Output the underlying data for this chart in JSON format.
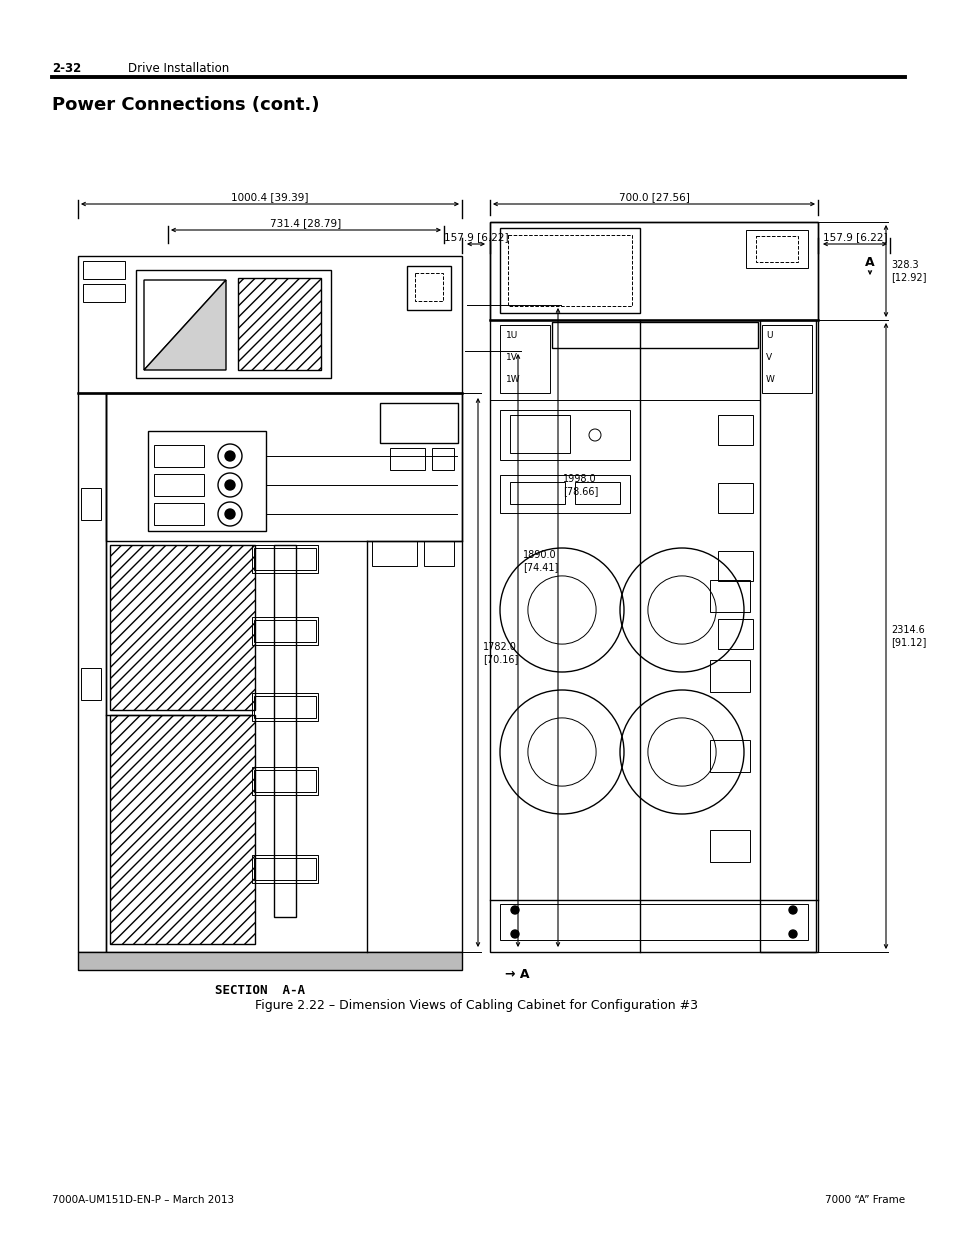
{
  "page_header_num": "2-32",
  "page_header_text": "Drive Installation",
  "title": "Power Connections (cont.)",
  "figure_caption": "Figure 2.22 – Dimension Views of Cabling Cabinet for Configuration #3",
  "footer_left": "7000A-UM151D-EN-P – March 2013",
  "footer_right": "7000 “A” Frame",
  "section_label": "SECTION  A-A",
  "bg_color": "#ffffff"
}
